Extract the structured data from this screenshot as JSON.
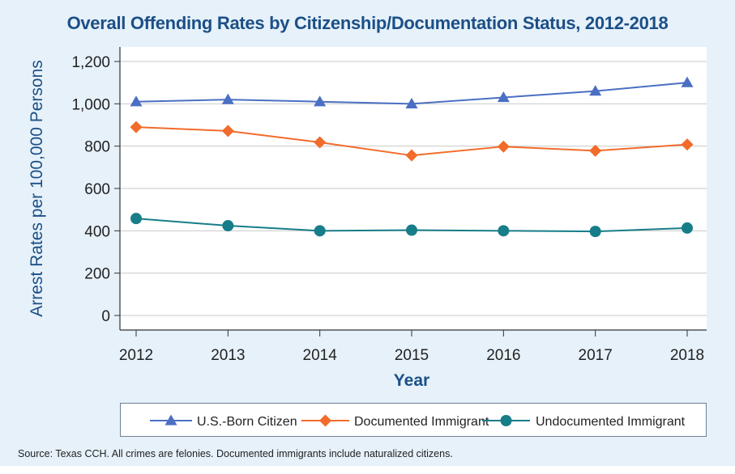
{
  "chart_data": {
    "type": "line",
    "title": "Overall Offending Rates by Citizenship/Documentation Status, 2012-2018",
    "xlabel": "Year",
    "ylabel": "Arrest Rates per 100,000 Persons",
    "categories": [
      "2012",
      "2013",
      "2014",
      "2015",
      "2016",
      "2017",
      "2018"
    ],
    "ylim": [
      0,
      1200
    ],
    "yticks": [
      0,
      200,
      400,
      600,
      800,
      1000,
      1200
    ],
    "ytick_labels": [
      "0",
      "200",
      "400",
      "600",
      "800",
      "1,000",
      "1,200"
    ],
    "grid": "horizontal",
    "legend_position": "bottom",
    "series": [
      {
        "name": "U.S.-Born Citizen",
        "values": [
          1010,
          1020,
          1010,
          1000,
          1030,
          1060,
          1100
        ],
        "color": "#4a6fc3",
        "marker": "triangle"
      },
      {
        "name": "Documented Immigrant",
        "values": [
          890,
          872,
          818,
          756,
          798,
          778,
          808
        ],
        "color": "#f26b2a",
        "marker": "diamond"
      },
      {
        "name": "Undocumented Immigrant",
        "values": [
          458,
          424,
          400,
          403,
          400,
          397,
          413
        ],
        "color": "#177d88",
        "marker": "circle"
      }
    ]
  },
  "source_note": "Source: Texas CCH. All crimes are felonies. Documented immigrants include naturalized citizens."
}
